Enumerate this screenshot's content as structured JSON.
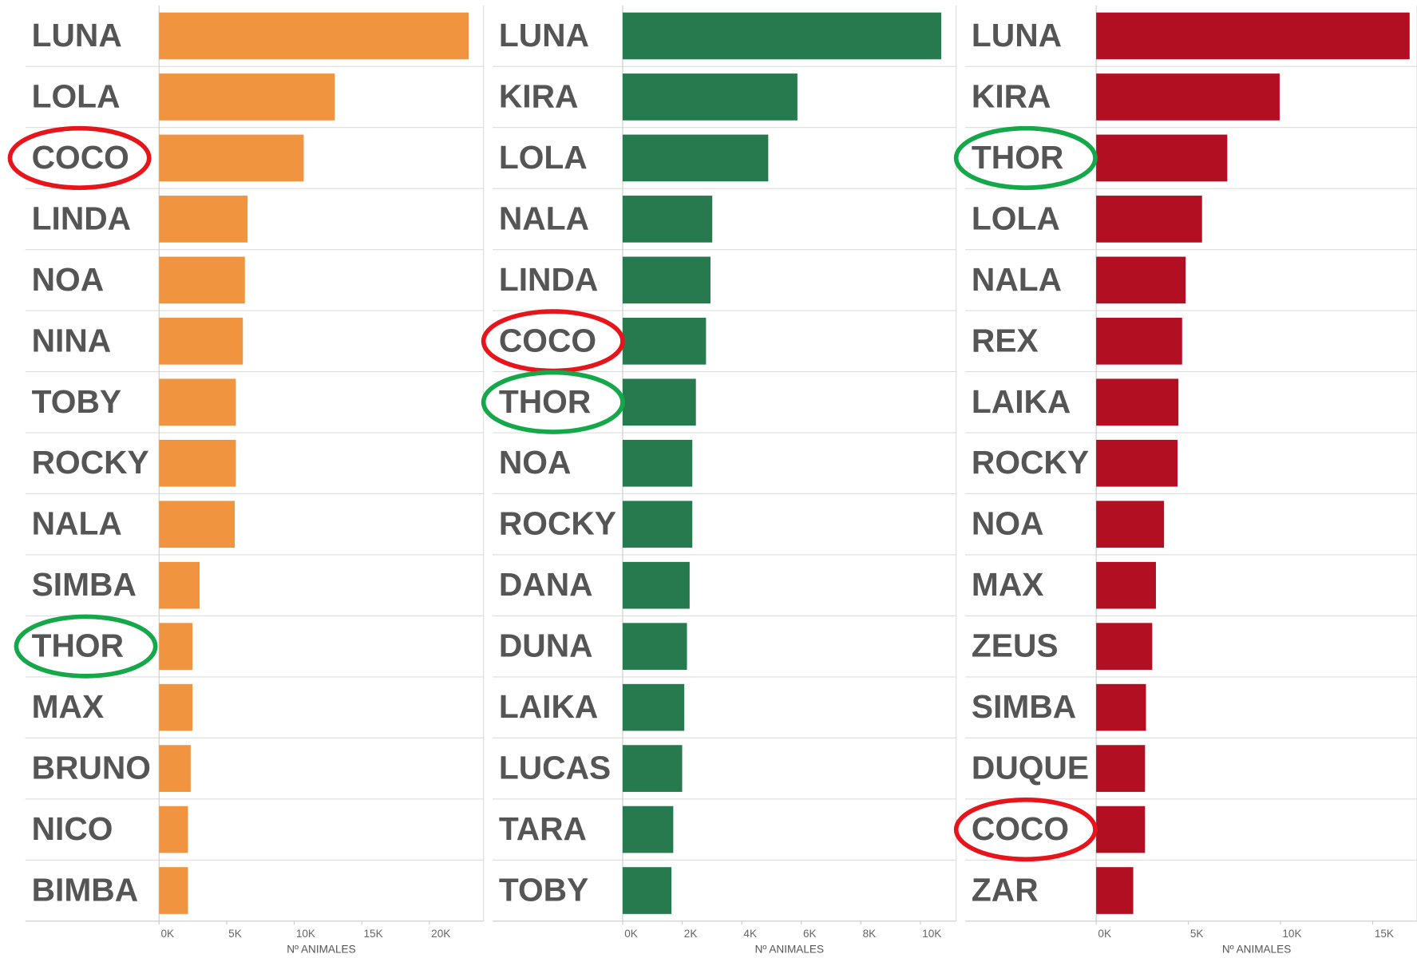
{
  "chart_data": [
    {
      "type": "bar",
      "categories": [
        "LUNA",
        "LOLA",
        "COCO",
        "LINDA",
        "NOA",
        "NINA",
        "TOBY",
        "ROCKY",
        "NALA",
        "SIMBA",
        "THOR",
        "MAX",
        "BRUNO",
        "NICO",
        "BIMBA"
      ],
      "values": [
        22900,
        13000,
        10700,
        6550,
        6350,
        6200,
        5680,
        5680,
        5600,
        3000,
        2470,
        2470,
        2340,
        2140,
        2140
      ],
      "color": "#f0943f",
      "xlim": [
        0,
        24000
      ],
      "xticks": [
        {
          "value": 0,
          "label": "0K"
        },
        {
          "value": 5000,
          "label": "5K"
        },
        {
          "value": 10000,
          "label": "10K"
        },
        {
          "value": 15000,
          "label": "15K"
        },
        {
          "value": 20000,
          "label": "20K"
        }
      ],
      "xlabel": "Nº ANIMALES"
    },
    {
      "type": "bar",
      "categories": [
        "LUNA",
        "KIRA",
        "LOLA",
        "NALA",
        "LINDA",
        "COCO",
        "THOR",
        "NOA",
        "ROCKY",
        "DANA",
        "DUNA",
        "LAIKA",
        "LUCAS",
        "TARA",
        "TOBY"
      ],
      "values": [
        10700,
        5870,
        4890,
        3010,
        2950,
        2800,
        2460,
        2340,
        2340,
        2250,
        2160,
        2070,
        2000,
        1700,
        1640
      ],
      "color": "#267a4e",
      "xlim": [
        0,
        11200
      ],
      "xticks": [
        {
          "value": 0,
          "label": "0K"
        },
        {
          "value": 2000,
          "label": "2K"
        },
        {
          "value": 4000,
          "label": "4K"
        },
        {
          "value": 6000,
          "label": "6K"
        },
        {
          "value": 8000,
          "label": "8K"
        },
        {
          "value": 10000,
          "label": "10K"
        }
      ],
      "xlabel": "Nº ANIMALES"
    },
    {
      "type": "bar",
      "categories": [
        "LUNA",
        "KIRA",
        "THOR",
        "LOLA",
        "NALA",
        "REX",
        "LAIKA",
        "ROCKY",
        "NOA",
        "MAX",
        "ZEUS",
        "SIMBA",
        "DUQUE",
        "COCO",
        "ZAR"
      ],
      "values": [
        17000,
        9950,
        7110,
        5740,
        4850,
        4660,
        4460,
        4410,
        3680,
        3240,
        3040,
        2700,
        2650,
        2650,
        2010
      ],
      "color": "#b30f22",
      "xlim": [
        0,
        17400
      ],
      "xticks": [
        {
          "value": 0,
          "label": "0K"
        },
        {
          "value": 5000,
          "label": "5K"
        },
        {
          "value": 10000,
          "label": "10K"
        },
        {
          "value": 15000,
          "label": "15K"
        }
      ],
      "xlabel": "Nº ANIMALES"
    }
  ]
}
